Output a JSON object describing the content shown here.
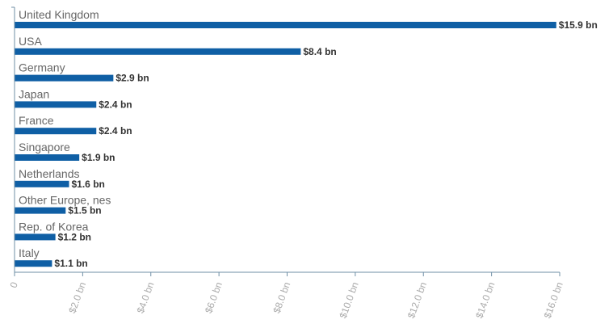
{
  "chart_data": {
    "type": "bar",
    "orientation": "horizontal",
    "categories": [
      "United Kingdom",
      "USA",
      "Germany",
      "Japan",
      "France",
      "Singapore",
      "Netherlands",
      "Other Europe, nes",
      "Rep. of Korea",
      "Italy"
    ],
    "values": [
      15.9,
      8.4,
      2.9,
      2.4,
      2.4,
      1.9,
      1.6,
      1.5,
      1.2,
      1.1
    ],
    "value_labels": [
      "$15.9 bn",
      "$8.4 bn",
      "$2.9 bn",
      "$2.4 bn",
      "$2.4 bn",
      "$1.9 bn",
      "$1.6 bn",
      "$1.5 bn",
      "$1.2 bn",
      "$1.1 bn"
    ],
    "x_ticks": [
      0,
      2,
      4,
      6,
      8,
      10,
      12,
      14,
      16
    ],
    "x_tick_labels": [
      "0",
      "$2.0 bn",
      "$4.0 bn",
      "$6.0 bn",
      "$8.0 bn",
      "$10.0 bn",
      "$12.0 bn",
      "$14.0 bn",
      "$16.0 bn"
    ],
    "xlim": [
      0,
      16
    ],
    "grid": false,
    "colors": {
      "bar": "#0f5fa5"
    }
  }
}
